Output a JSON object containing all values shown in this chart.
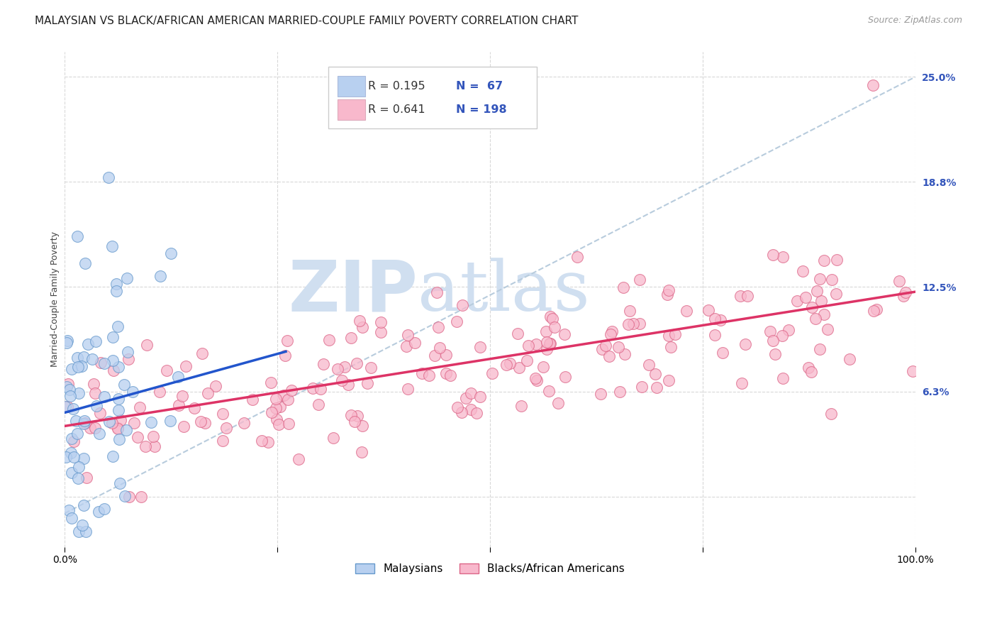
{
  "title": "MALAYSIAN VS BLACK/AFRICAN AMERICAN MARRIED-COUPLE FAMILY POVERTY CORRELATION CHART",
  "source": "Source: ZipAtlas.com",
  "ylabel": "Married-Couple Family Poverty",
  "xmin": 0.0,
  "xmax": 1.0,
  "ymin": -0.03,
  "ymax": 0.265,
  "yticks": [
    0.0,
    0.0625,
    0.125,
    0.1875,
    0.25
  ],
  "ytick_labels": [
    "",
    "6.3%",
    "12.5%",
    "18.8%",
    "25.0%"
  ],
  "bg_color": "#ffffff",
  "grid_color": "#d8d8d8",
  "watermark_zip": "ZIP",
  "watermark_atlas": "atlas",
  "watermark_color": "#d0dff0",
  "malaysian_color": "#b8d0f0",
  "malaysian_edge_color": "#6699cc",
  "black_color": "#f8b8cc",
  "black_edge_color": "#dd6688",
  "malaysian_line_color": "#2255cc",
  "black_line_color": "#dd3366",
  "dashed_line_color": "#b8ccdd",
  "legend_label1": "Malaysians",
  "legend_label2": "Blacks/African Americans",
  "title_fontsize": 11,
  "source_fontsize": 9,
  "axis_label_fontsize": 9,
  "tick_fontsize": 10,
  "malaysian_R": 0.195,
  "malaysian_N": 67,
  "black_R": 0.641,
  "black_N": 198,
  "malaysian_intercept": 0.05,
  "malaysian_slope": 0.14,
  "black_intercept": 0.042,
  "black_slope": 0.08,
  "dashed_intercept": -0.01,
  "dashed_slope": 0.26,
  "scatter_size": 130,
  "scatter_alpha": 0.75
}
